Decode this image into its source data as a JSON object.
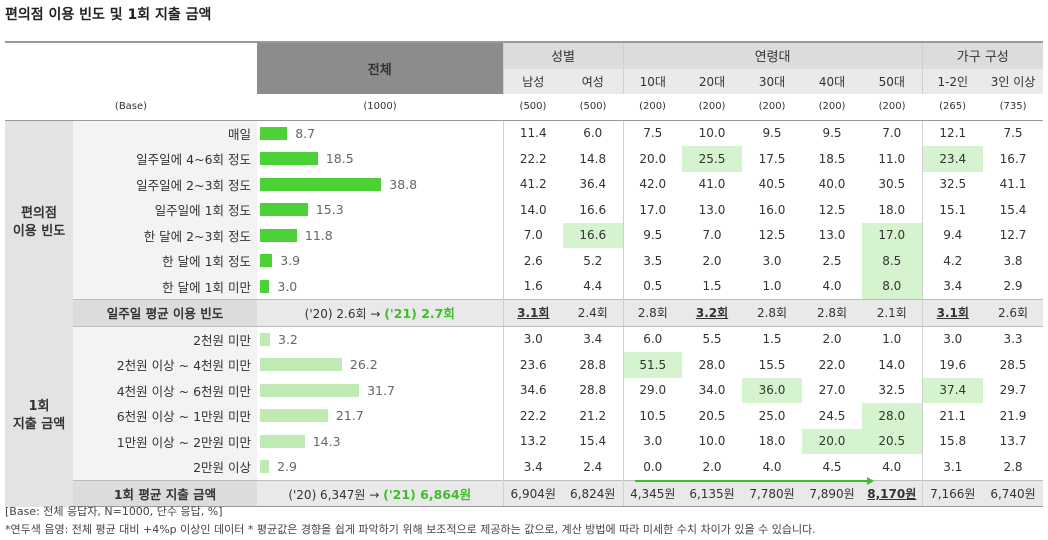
{
  "title": "편의점 이용 빈도 및 1회 지출 금액",
  "header": {
    "total_label": "전체",
    "groups": [
      {
        "label": "성별",
        "cols": [
          "남성",
          "여성"
        ]
      },
      {
        "label": "연령대",
        "cols": [
          "10대",
          "20대",
          "30대",
          "40대",
          "50대"
        ]
      },
      {
        "label": "가구 구성",
        "cols": [
          "1-2인",
          "3인 이상"
        ]
      }
    ],
    "base_label": "(Base)",
    "base_total": "(1000)",
    "base_values": [
      "(500)",
      "(500)",
      "(200)",
      "(200)",
      "(200)",
      "(200)",
      "(200)",
      "(265)",
      "(735)"
    ]
  },
  "chart_data": {
    "type": "table",
    "sections": [
      {
        "label": "편의점\n이용 빈도",
        "rows": [
          {
            "label": "매일",
            "total": 8.7,
            "values": [
              11.4,
              6.0,
              7.5,
              10.0,
              9.5,
              9.5,
              7.0,
              12.1,
              7.5
            ],
            "hl": []
          },
          {
            "label": "일주일에 4~6회 정도",
            "total": 18.5,
            "values": [
              22.2,
              14.8,
              20.0,
              25.5,
              17.5,
              18.5,
              11.0,
              23.4,
              16.7
            ],
            "hl": [
              3,
              7
            ]
          },
          {
            "label": "일주일에 2~3회 정도",
            "total": 38.8,
            "values": [
              41.2,
              36.4,
              42.0,
              41.0,
              40.5,
              40.0,
              30.5,
              32.5,
              41.1
            ],
            "hl": []
          },
          {
            "label": "일주일에 1회 정도",
            "total": 15.3,
            "values": [
              14.0,
              16.6,
              17.0,
              13.0,
              16.0,
              12.5,
              18.0,
              15.1,
              15.4
            ],
            "hl": []
          },
          {
            "label": "한 달에 2~3회 정도",
            "total": 11.8,
            "values": [
              7.0,
              16.6,
              9.5,
              7.0,
              12.5,
              13.0,
              17.0,
              9.4,
              12.7
            ],
            "hl": [
              1,
              6
            ]
          },
          {
            "label": "한 달에 1회 정도",
            "total": 3.9,
            "values": [
              2.6,
              5.2,
              3.5,
              2.0,
              3.0,
              2.5,
              8.5,
              4.2,
              3.8
            ],
            "hl": [
              6
            ]
          },
          {
            "label": "한 달에 1회 미만",
            "total": 3.0,
            "values": [
              1.6,
              4.4,
              0.5,
              1.5,
              1.0,
              4.0,
              8.0,
              3.4,
              2.9
            ],
            "hl": [
              6
            ]
          }
        ],
        "summary": {
          "label": "일주일 평균 이용 빈도",
          "prev": "('20) 2.6회 →",
          "curr": "('21) 2.7회",
          "values": [
            "3.1회",
            "2.4회",
            "2.8회",
            "3.2회",
            "2.8회",
            "2.8회",
            "2.1회",
            "3.1회",
            "2.6회"
          ],
          "underline": [
            0,
            3,
            7
          ]
        }
      },
      {
        "label": "1회\n지출 금액",
        "rows": [
          {
            "label": "2천원 미만",
            "total": 3.2,
            "values": [
              3.0,
              3.4,
              6.0,
              5.5,
              1.5,
              2.0,
              1.0,
              3.0,
              3.3
            ],
            "hl": []
          },
          {
            "label": "2천원 이상 ~ 4천원 미만",
            "total": 26.2,
            "values": [
              23.6,
              28.8,
              51.5,
              28.0,
              15.5,
              22.0,
              14.0,
              19.6,
              28.5
            ],
            "hl": [
              2
            ]
          },
          {
            "label": "4천원 이상 ~ 6천원 미만",
            "total": 31.7,
            "values": [
              34.6,
              28.8,
              29.0,
              34.0,
              36.0,
              27.0,
              32.5,
              37.4,
              29.7
            ],
            "hl": [
              4,
              7
            ]
          },
          {
            "label": "6천원 이상 ~ 1만원 미만",
            "total": 21.7,
            "values": [
              22.2,
              21.2,
              10.5,
              20.5,
              25.0,
              24.5,
              28.0,
              21.1,
              21.9
            ],
            "hl": [
              6
            ]
          },
          {
            "label": "1만원 이상 ~ 2만원 미만",
            "total": 14.3,
            "values": [
              13.2,
              15.4,
              3.0,
              10.0,
              18.0,
              20.0,
              20.5,
              15.8,
              13.7
            ],
            "hl": [
              5,
              6
            ]
          },
          {
            "label": "2만원 이상",
            "total": 2.9,
            "values": [
              3.4,
              2.4,
              0.0,
              2.0,
              4.0,
              4.5,
              4.0,
              3.1,
              2.8
            ],
            "hl": []
          }
        ],
        "summary": {
          "label": "1회 평균 지출 금액",
          "prev": "('20) 6,347원 →",
          "curr": "('21) 6,864원",
          "values": [
            "6,904원",
            "6,824원",
            "4,345원",
            "6,135원",
            "7,780원",
            "7,890원",
            "8,170원",
            "7,166원",
            "6,740원"
          ],
          "underline": [
            6
          ]
        }
      }
    ],
    "xlim": [
      0,
      40
    ]
  },
  "colors": {
    "bar_usage": "#4cd137",
    "bar_spend": "#bfeab4",
    "highlight": "#d6f3cf",
    "accent": "#3fbe2b"
  },
  "footnotes": {
    "line1": "[Base: 전체 응답자, N=1000, 단수 응답, %]",
    "line2": "*연두색 음영: 전체 평균 대비 +4%p 이상인 데이터    * 평균값은 경향을 쉽게 파악하기 위해 보조적으로 제공하는 값으로, 계산 방법에 따라 미세한 수치 차이가 있을 수 있습니다."
  }
}
